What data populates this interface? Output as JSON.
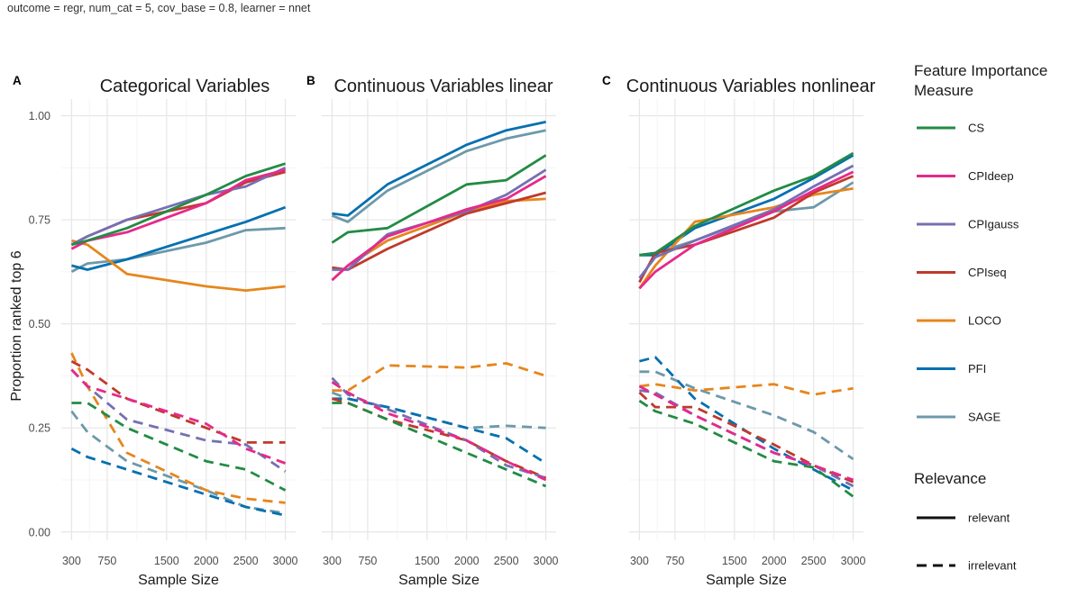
{
  "caption": "outcome = regr, num_cat = 5, cov_base = 0.8, learner = nnet",
  "chart_data": {
    "type": "line",
    "ylabel": "Proportion ranked top 6",
    "xlabel": "Sample Size",
    "x_ticks": [
      300,
      750,
      1500,
      2000,
      2500,
      3000
    ],
    "y_ticks": [
      0.0,
      0.25,
      0.5,
      0.75,
      1.0
    ],
    "y_tick_labels": [
      "0.00",
      "0.25",
      "0.50",
      "0.75",
      "1.00"
    ],
    "ylim": [
      -0.02,
      1.04
    ],
    "xlim": [
      170,
      3130
    ],
    "x": [
      300,
      500,
      1000,
      2000,
      2500,
      3000
    ],
    "legend": {
      "title_line1": "Feature Importance",
      "title_line2": "Measure",
      "measures": [
        {
          "name": "CS",
          "color": "#238b45"
        },
        {
          "name": "CPIdeep",
          "color": "#e7298a"
        },
        {
          "name": "CPIgauss",
          "color": "#7570b3"
        },
        {
          "name": "CPIseq",
          "color": "#c0392b"
        },
        {
          "name": "LOCO",
          "color": "#e6861c"
        },
        {
          "name": "PFI",
          "color": "#0570b0"
        },
        {
          "name": "SAGE",
          "color": "#6d99aa"
        }
      ],
      "relevance_title": "Relevance",
      "relevance": [
        {
          "name": "relevant",
          "style": "solid"
        },
        {
          "name": "irrelevant",
          "style": "dashed"
        }
      ]
    },
    "panels": [
      {
        "tag": "A",
        "title": "Categorical Variables",
        "relevant": {
          "CS": [
            0.69,
            0.7,
            0.73,
            0.81,
            0.855,
            0.885
          ],
          "CPIdeep": [
            0.68,
            0.7,
            0.72,
            0.79,
            0.845,
            0.87
          ],
          "CPIgauss": [
            0.69,
            0.71,
            0.75,
            0.81,
            0.83,
            0.875
          ],
          "CPIseq": [
            0.69,
            0.71,
            0.75,
            0.79,
            0.84,
            0.865
          ],
          "LOCO": [
            0.7,
            0.69,
            0.62,
            0.59,
            0.58,
            0.59
          ],
          "PFI": [
            0.64,
            0.63,
            0.655,
            0.715,
            0.745,
            0.78
          ],
          "SAGE": [
            0.625,
            0.645,
            0.655,
            0.695,
            0.725,
            0.73
          ]
        },
        "irrelevant": {
          "CS": [
            0.31,
            0.31,
            0.25,
            0.17,
            0.15,
            0.1
          ],
          "CPIdeep": [
            0.39,
            0.35,
            0.32,
            0.26,
            0.2,
            0.165
          ],
          "CPIgauss": [
            0.39,
            0.35,
            0.27,
            0.22,
            0.21,
            0.145
          ],
          "CPIseq": [
            0.41,
            0.39,
            0.32,
            0.25,
            0.215,
            0.215
          ],
          "LOCO": [
            0.43,
            0.35,
            0.19,
            0.1,
            0.08,
            0.07
          ],
          "PFI": [
            0.2,
            0.18,
            0.15,
            0.09,
            0.06,
            0.04
          ],
          "SAGE": [
            0.29,
            0.24,
            0.17,
            0.1,
            0.06,
            0.045
          ]
        }
      },
      {
        "tag": "B",
        "title": "Continuous Variables linear",
        "relevant": {
          "CS": [
            0.695,
            0.72,
            0.73,
            0.835,
            0.845,
            0.905
          ],
          "CPIdeep": [
            0.605,
            0.64,
            0.71,
            0.775,
            0.8,
            0.855
          ],
          "CPIgauss": [
            0.63,
            0.63,
            0.715,
            0.77,
            0.81,
            0.87
          ],
          "CPIseq": [
            0.635,
            0.63,
            0.68,
            0.765,
            0.79,
            0.815
          ],
          "LOCO": [
            0.605,
            0.64,
            0.7,
            0.77,
            0.795,
            0.8
          ],
          "PFI": [
            0.765,
            0.76,
            0.835,
            0.93,
            0.965,
            0.985
          ],
          "SAGE": [
            0.76,
            0.745,
            0.82,
            0.915,
            0.945,
            0.965
          ]
        },
        "irrelevant": {
          "CS": [
            0.31,
            0.31,
            0.27,
            0.19,
            0.15,
            0.11
          ],
          "CPIdeep": [
            0.36,
            0.335,
            0.285,
            0.22,
            0.17,
            0.125
          ],
          "CPIgauss": [
            0.37,
            0.33,
            0.295,
            0.22,
            0.16,
            0.13
          ],
          "CPIseq": [
            0.32,
            0.31,
            0.27,
            0.22,
            0.17,
            0.13
          ],
          "LOCO": [
            0.34,
            0.34,
            0.4,
            0.395,
            0.405,
            0.375
          ],
          "PFI": [
            0.32,
            0.32,
            0.3,
            0.25,
            0.225,
            0.165
          ],
          "SAGE": [
            0.335,
            0.32,
            0.3,
            0.25,
            0.255,
            0.25
          ]
        }
      },
      {
        "tag": "C",
        "title": "Continuous Variables nonlinear",
        "relevant": {
          "CS": [
            0.665,
            0.67,
            0.735,
            0.82,
            0.855,
            0.91
          ],
          "CPIdeep": [
            0.585,
            0.625,
            0.69,
            0.77,
            0.82,
            0.865
          ],
          "CPIgauss": [
            0.61,
            0.66,
            0.7,
            0.775,
            0.83,
            0.88
          ],
          "CPIseq": [
            0.6,
            0.67,
            0.69,
            0.755,
            0.815,
            0.855
          ],
          "LOCO": [
            0.585,
            0.64,
            0.745,
            0.78,
            0.81,
            0.825
          ],
          "PFI": [
            0.665,
            0.665,
            0.73,
            0.8,
            0.85,
            0.905
          ],
          "SAGE": [
            0.665,
            0.67,
            0.7,
            0.77,
            0.78,
            0.84
          ]
        },
        "irrelevant": {
          "CS": [
            0.315,
            0.29,
            0.26,
            0.17,
            0.155,
            0.085
          ],
          "CPIdeep": [
            0.35,
            0.33,
            0.28,
            0.19,
            0.16,
            0.125
          ],
          "CPIgauss": [
            0.34,
            0.335,
            0.28,
            0.19,
            0.16,
            0.11
          ],
          "CPIseq": [
            0.335,
            0.3,
            0.3,
            0.21,
            0.16,
            0.12
          ],
          "LOCO": [
            0.35,
            0.355,
            0.34,
            0.355,
            0.33,
            0.345
          ],
          "PFI": [
            0.41,
            0.42,
            0.32,
            0.2,
            0.15,
            0.1
          ],
          "SAGE": [
            0.385,
            0.385,
            0.345,
            0.28,
            0.24,
            0.175
          ]
        }
      }
    ]
  }
}
